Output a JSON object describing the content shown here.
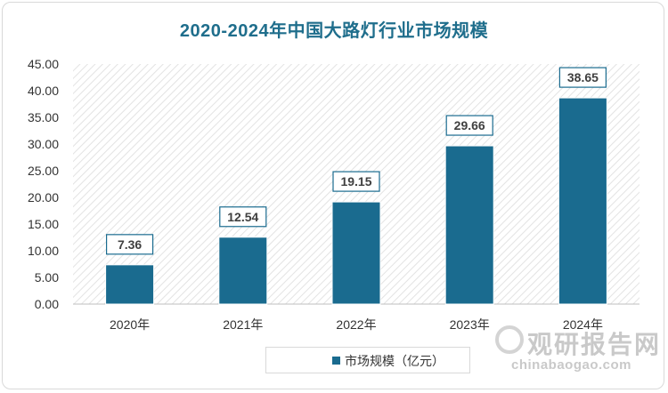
{
  "chart_data": {
    "type": "bar",
    "title": "2020-2024年中国大路灯行业市场规模",
    "categories": [
      "2020年",
      "2021年",
      "2022年",
      "2023年",
      "2024年"
    ],
    "series": [
      {
        "name": "市场规模（亿元）",
        "values": [
          7.36,
          12.54,
          19.15,
          29.66,
          38.65
        ]
      }
    ],
    "data_labels": [
      "7.36",
      "12.54",
      "19.15",
      "29.66",
      "38.65"
    ],
    "yticks": [
      "0.00",
      "5.00",
      "10.00",
      "15.00",
      "20.00",
      "25.00",
      "30.00",
      "35.00",
      "40.00",
      "45.00"
    ],
    "ylim": [
      0,
      45
    ],
    "legend_position": "bottom",
    "bar_color": "#1a6b8f",
    "label_border_color": "#1a6b8f"
  },
  "watermark": {
    "cn": "观研报告网",
    "en": "chinabaogao.com"
  }
}
